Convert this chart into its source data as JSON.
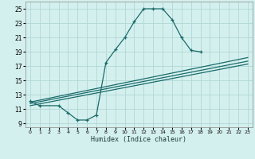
{
  "xlabel": "Humidex (Indice chaleur)",
  "bg_color": "#d4f0ee",
  "grid_color": "#b0d8d4",
  "line_color": "#1a6b6b",
  "xlim": [
    -0.5,
    23.5
  ],
  "ylim": [
    8.5,
    26.0
  ],
  "xticks": [
    0,
    1,
    2,
    3,
    4,
    5,
    6,
    7,
    8,
    9,
    10,
    11,
    12,
    13,
    14,
    15,
    16,
    17,
    18,
    19,
    20,
    21,
    22,
    23
  ],
  "yticks": [
    9,
    11,
    13,
    15,
    17,
    19,
    21,
    23,
    25
  ],
  "curve_x": [
    0,
    1,
    3,
    4,
    5,
    6,
    7,
    8,
    9,
    10,
    11,
    12,
    13,
    14,
    15,
    16,
    17,
    18
  ],
  "curve_y": [
    12.1,
    11.5,
    11.5,
    10.5,
    9.5,
    9.5,
    10.2,
    17.5,
    19.3,
    21.0,
    23.2,
    25.0,
    25.0,
    25.0,
    23.5,
    21.0,
    19.2,
    19.0
  ],
  "line1_x": [
    0,
    23
  ],
  "line1_y": [
    12.0,
    18.2
  ],
  "line2_x": [
    0,
    23
  ],
  "line2_y": [
    11.8,
    17.7
  ],
  "line3_x": [
    0,
    23
  ],
  "line3_y": [
    11.5,
    17.3
  ]
}
